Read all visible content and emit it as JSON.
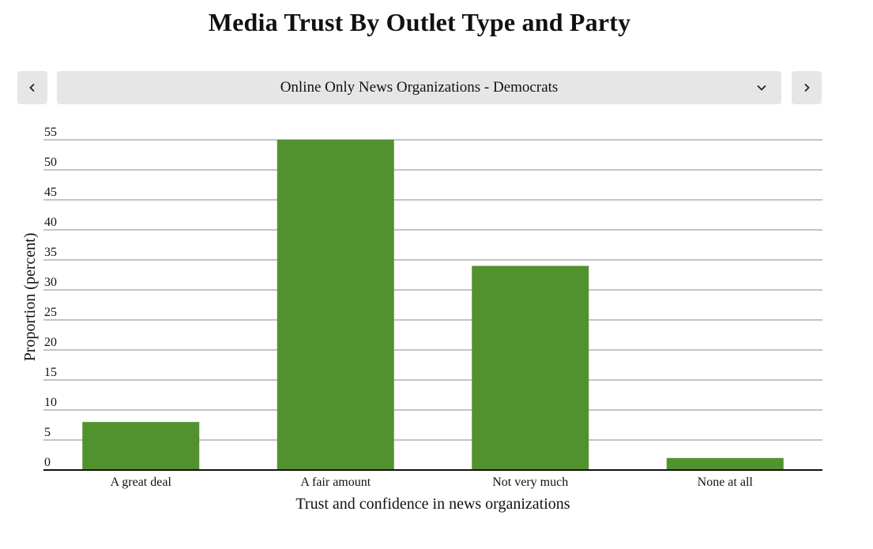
{
  "title": "Media Trust By Outlet Type and Party",
  "selector": {
    "selected": "Online Only News Organizations - Democrats",
    "prev_icon": "chevron-left-icon",
    "next_icon": "chevron-right-icon",
    "dropdown_icon": "chevron-down-icon"
  },
  "colors": {
    "bar": "#52922e",
    "grid": "#888888",
    "axis": "#111111",
    "control_bg": "#e6e6e6"
  },
  "chart_data": {
    "type": "bar",
    "title": "",
    "categories": [
      "A great deal",
      "A fair amount",
      "Not very much",
      "None at all"
    ],
    "values": [
      8,
      55,
      34,
      2
    ],
    "xlabel": "Trust and confidence in news organizations",
    "ylabel": "Proportion (percent)",
    "ylim": [
      0,
      55
    ],
    "yticks": [
      "0",
      "5",
      "10",
      "15",
      "20",
      "25",
      "30",
      "35",
      "40",
      "45",
      "50",
      "55"
    ],
    "grid": true,
    "legend": "none"
  }
}
